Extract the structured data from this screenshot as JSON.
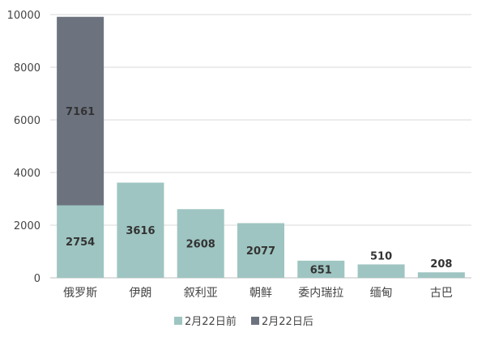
{
  "chart_data": {
    "type": "bar",
    "stacked": true,
    "categories": [
      "俄罗斯",
      "伊朗",
      "叙利亚",
      "朝鲜",
      "委内瑞拉",
      "缅甸",
      "古巴"
    ],
    "series": [
      {
        "name": "2月22日前",
        "values": [
          2754,
          3616,
          2608,
          2077,
          651,
          510,
          208
        ],
        "color": "#9ec5c1"
      },
      {
        "name": "2月22日后",
        "values": [
          7161,
          0,
          0,
          0,
          0,
          0,
          0
        ],
        "color": "#6c737f"
      }
    ],
    "ylim": [
      0,
      10000
    ],
    "yticks": [
      0,
      2000,
      4000,
      6000,
      8000,
      10000
    ],
    "grid": true,
    "legend": "bottom"
  }
}
